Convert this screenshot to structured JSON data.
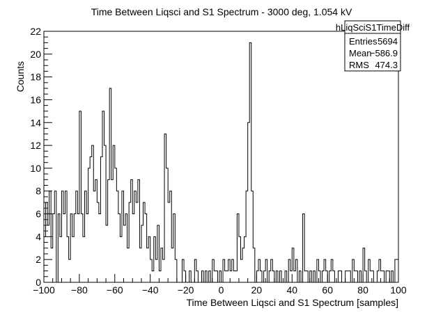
{
  "chart_data": {
    "type": "histogram",
    "title": "Time Between Liqsci and S1 Spectrum - 3000 deg, 1.054 kV",
    "xlabel": "Time Between Liqsci and S1 Spectrum [samples]",
    "ylabel": "Counts",
    "xlim": [
      -100,
      100
    ],
    "ylim": [
      0,
      22
    ],
    "xticks": [
      -100,
      -80,
      -60,
      -40,
      -20,
      0,
      20,
      40,
      60,
      80,
      100
    ],
    "xtick_labels": [
      "−100",
      "−80",
      "−60",
      "−40",
      "−20",
      "0",
      "20",
      "40",
      "60",
      "80",
      "100"
    ],
    "yticks": [
      0,
      2,
      4,
      6,
      8,
      10,
      12,
      14,
      16,
      18,
      20,
      22
    ],
    "bin_width": 1,
    "bin_start": -100,
    "counts": [
      4,
      7,
      5,
      8,
      3,
      6,
      8,
      0,
      6,
      4,
      8,
      6,
      8,
      4,
      2,
      6,
      4,
      6,
      8,
      6,
      15,
      6,
      4,
      8,
      6,
      10,
      11,
      12,
      8,
      9,
      7,
      6,
      11,
      15,
      12,
      5,
      9,
      17,
      9,
      12,
      10,
      8,
      6,
      4,
      8,
      5,
      6,
      3,
      7,
      9,
      6,
      8,
      7,
      9,
      3,
      5,
      7,
      6,
      3,
      4,
      2,
      1,
      4,
      2,
      5,
      1,
      3,
      2,
      13,
      10,
      7,
      8,
      3,
      6,
      2,
      0,
      0,
      0,
      2,
      1,
      0,
      0,
      1,
      0,
      0,
      2,
      1,
      0,
      0,
      1,
      0,
      1,
      0,
      1,
      0,
      2,
      1,
      1,
      0,
      1,
      0,
      2,
      1,
      1,
      2,
      1,
      2,
      1,
      1,
      6,
      4,
      2,
      3,
      4,
      8,
      14,
      21,
      8,
      3,
      0,
      1,
      2,
      1,
      0,
      1,
      2,
      0,
      1,
      2,
      1,
      0,
      1,
      0,
      1,
      0,
      0,
      1,
      0,
      2,
      1,
      3,
      1,
      2,
      0,
      1,
      0,
      6,
      1,
      1,
      0,
      1,
      0,
      1,
      0,
      2,
      1,
      0,
      1,
      2,
      1,
      0,
      1,
      2,
      1,
      0,
      0,
      1,
      1,
      0,
      0,
      1,
      1,
      1,
      0,
      2,
      1,
      1,
      0,
      1,
      0,
      3,
      1,
      0,
      2,
      1,
      1,
      0,
      0,
      1,
      2,
      1,
      1,
      0,
      1,
      1,
      0,
      1,
      0,
      2,
      2
    ],
    "stats_box": {
      "title": "hLiqSciS1TimeDiff",
      "rows": [
        {
          "label": "Entries",
          "value": "5694"
        },
        {
          "label": "Mean",
          "value": "−586.9"
        },
        {
          "label": "RMS",
          "value": "474.3"
        }
      ]
    },
    "grid": false,
    "line_color": "#000000"
  }
}
